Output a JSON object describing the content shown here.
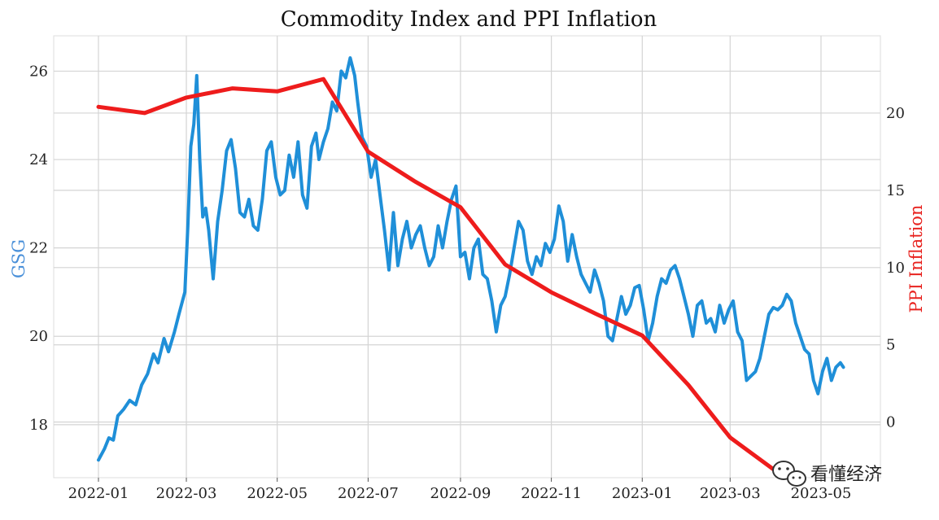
{
  "chart_data": {
    "type": "line",
    "title": "Commodity Index and PPI Inflation",
    "xlabel": "",
    "x_tick_labels": [
      "2022-01",
      "2022-03",
      "2022-05",
      "2022-07",
      "2022-09",
      "2022-11",
      "2023-01",
      "2023-03",
      "2023-05"
    ],
    "left_axis": {
      "label": "GSG",
      "label_color": "#4a90d9",
      "ylim": [
        16.8,
        26.8
      ],
      "ticks": [
        "18",
        "20",
        "22",
        "24",
        "26"
      ]
    },
    "right_axis": {
      "label": "PPI Inflation",
      "label_color": "#e8231f",
      "ylim": [
        -3.6,
        25.0
      ],
      "ticks": [
        "0",
        "5",
        "10",
        "15",
        "20"
      ]
    },
    "grid": true,
    "series": [
      {
        "name": "GSG",
        "axis": "left",
        "color": "#1f8fd8",
        "points": [
          [
            "2022-01-01",
            17.2
          ],
          [
            "2022-01-05",
            17.45
          ],
          [
            "2022-01-08",
            17.7
          ],
          [
            "2022-01-11",
            17.65
          ],
          [
            "2022-01-14",
            18.2
          ],
          [
            "2022-01-18",
            18.35
          ],
          [
            "2022-01-22",
            18.55
          ],
          [
            "2022-01-26",
            18.45
          ],
          [
            "2022-01-30",
            18.9
          ],
          [
            "2022-02-03",
            19.15
          ],
          [
            "2022-02-07",
            19.6
          ],
          [
            "2022-02-10",
            19.4
          ],
          [
            "2022-02-14",
            19.95
          ],
          [
            "2022-02-17",
            19.65
          ],
          [
            "2022-02-21",
            20.1
          ],
          [
            "2022-02-24",
            20.5
          ],
          [
            "2022-02-28",
            21.0
          ],
          [
            "2022-03-02",
            22.5
          ],
          [
            "2022-03-04",
            24.3
          ],
          [
            "2022-03-06",
            24.8
          ],
          [
            "2022-03-08",
            25.9
          ],
          [
            "2022-03-10",
            24.0
          ],
          [
            "2022-03-12",
            22.7
          ],
          [
            "2022-03-14",
            22.9
          ],
          [
            "2022-03-16",
            22.4
          ],
          [
            "2022-03-19",
            21.3
          ],
          [
            "2022-03-22",
            22.6
          ],
          [
            "2022-03-25",
            23.3
          ],
          [
            "2022-03-28",
            24.2
          ],
          [
            "2022-03-31",
            24.45
          ],
          [
            "2022-04-03",
            23.8
          ],
          [
            "2022-04-06",
            22.8
          ],
          [
            "2022-04-09",
            22.7
          ],
          [
            "2022-04-12",
            23.1
          ],
          [
            "2022-04-15",
            22.5
          ],
          [
            "2022-04-18",
            22.4
          ],
          [
            "2022-04-21",
            23.1
          ],
          [
            "2022-04-24",
            24.2
          ],
          [
            "2022-04-27",
            24.4
          ],
          [
            "2022-04-30",
            23.6
          ],
          [
            "2022-05-03",
            23.2
          ],
          [
            "2022-05-06",
            23.3
          ],
          [
            "2022-05-09",
            24.1
          ],
          [
            "2022-05-12",
            23.6
          ],
          [
            "2022-05-15",
            24.4
          ],
          [
            "2022-05-18",
            23.2
          ],
          [
            "2022-05-21",
            22.9
          ],
          [
            "2022-05-24",
            24.3
          ],
          [
            "2022-05-27",
            24.6
          ],
          [
            "2022-05-29",
            24.0
          ],
          [
            "2022-06-01",
            24.4
          ],
          [
            "2022-06-04",
            24.7
          ],
          [
            "2022-06-07",
            25.3
          ],
          [
            "2022-06-10",
            25.1
          ],
          [
            "2022-06-13",
            26.0
          ],
          [
            "2022-06-16",
            25.85
          ],
          [
            "2022-06-19",
            26.3
          ],
          [
            "2022-06-22",
            25.9
          ],
          [
            "2022-06-24",
            25.3
          ],
          [
            "2022-06-27",
            24.5
          ],
          [
            "2022-06-30",
            24.3
          ],
          [
            "2022-07-03",
            23.6
          ],
          [
            "2022-07-06",
            24.0
          ],
          [
            "2022-07-09",
            23.2
          ],
          [
            "2022-07-12",
            22.4
          ],
          [
            "2022-07-15",
            21.5
          ],
          [
            "2022-07-18",
            22.8
          ],
          [
            "2022-07-21",
            21.6
          ],
          [
            "2022-07-24",
            22.2
          ],
          [
            "2022-07-27",
            22.6
          ],
          [
            "2022-07-30",
            22.0
          ],
          [
            "2022-08-02",
            22.3
          ],
          [
            "2022-08-05",
            22.5
          ],
          [
            "2022-08-08",
            22.0
          ],
          [
            "2022-08-11",
            21.6
          ],
          [
            "2022-08-14",
            21.8
          ],
          [
            "2022-08-17",
            22.5
          ],
          [
            "2022-08-20",
            22.0
          ],
          [
            "2022-08-23",
            22.6
          ],
          [
            "2022-08-26",
            23.1
          ],
          [
            "2022-08-29",
            23.4
          ],
          [
            "2022-09-01",
            21.8
          ],
          [
            "2022-09-04",
            21.9
          ],
          [
            "2022-09-07",
            21.3
          ],
          [
            "2022-09-10",
            22.0
          ],
          [
            "2022-09-13",
            22.2
          ],
          [
            "2022-09-16",
            21.4
          ],
          [
            "2022-09-19",
            21.3
          ],
          [
            "2022-09-22",
            20.8
          ],
          [
            "2022-09-25",
            20.1
          ],
          [
            "2022-09-28",
            20.7
          ],
          [
            "2022-10-01",
            20.9
          ],
          [
            "2022-10-04",
            21.4
          ],
          [
            "2022-10-07",
            22.0
          ],
          [
            "2022-10-10",
            22.6
          ],
          [
            "2022-10-13",
            22.4
          ],
          [
            "2022-10-16",
            21.7
          ],
          [
            "2022-10-19",
            21.4
          ],
          [
            "2022-10-22",
            21.8
          ],
          [
            "2022-10-25",
            21.6
          ],
          [
            "2022-10-28",
            22.1
          ],
          [
            "2022-10-31",
            21.9
          ],
          [
            "2022-11-03",
            22.2
          ],
          [
            "2022-11-06",
            22.95
          ],
          [
            "2022-11-09",
            22.6
          ],
          [
            "2022-11-12",
            21.7
          ],
          [
            "2022-11-15",
            22.3
          ],
          [
            "2022-11-18",
            21.8
          ],
          [
            "2022-11-21",
            21.4
          ],
          [
            "2022-11-24",
            21.2
          ],
          [
            "2022-11-27",
            21.0
          ],
          [
            "2022-11-30",
            21.5
          ],
          [
            "2022-12-03",
            21.2
          ],
          [
            "2022-12-06",
            20.8
          ],
          [
            "2022-12-09",
            20.0
          ],
          [
            "2022-12-12",
            19.9
          ],
          [
            "2022-12-15",
            20.4
          ],
          [
            "2022-12-18",
            20.9
          ],
          [
            "2022-12-21",
            20.5
          ],
          [
            "2022-12-24",
            20.7
          ],
          [
            "2022-12-27",
            21.1
          ],
          [
            "2022-12-30",
            21.15
          ],
          [
            "2023-01-02",
            20.6
          ],
          [
            "2023-01-05",
            19.9
          ],
          [
            "2023-01-08",
            20.3
          ],
          [
            "2023-01-11",
            20.9
          ],
          [
            "2023-01-14",
            21.3
          ],
          [
            "2023-01-17",
            21.2
          ],
          [
            "2023-01-20",
            21.5
          ],
          [
            "2023-01-23",
            21.6
          ],
          [
            "2023-01-26",
            21.3
          ],
          [
            "2023-01-29",
            20.9
          ],
          [
            "2023-02-01",
            20.5
          ],
          [
            "2023-02-04",
            20.0
          ],
          [
            "2023-02-07",
            20.7
          ],
          [
            "2023-02-10",
            20.8
          ],
          [
            "2023-02-13",
            20.3
          ],
          [
            "2023-02-16",
            20.4
          ],
          [
            "2023-02-19",
            20.1
          ],
          [
            "2023-02-22",
            20.7
          ],
          [
            "2023-02-25",
            20.3
          ],
          [
            "2023-02-28",
            20.6
          ],
          [
            "2023-03-03",
            20.8
          ],
          [
            "2023-03-06",
            20.1
          ],
          [
            "2023-03-09",
            19.9
          ],
          [
            "2023-03-12",
            19.0
          ],
          [
            "2023-03-15",
            19.1
          ],
          [
            "2023-03-18",
            19.2
          ],
          [
            "2023-03-21",
            19.5
          ],
          [
            "2023-03-24",
            20.0
          ],
          [
            "2023-03-27",
            20.5
          ],
          [
            "2023-03-30",
            20.65
          ],
          [
            "2023-04-02",
            20.6
          ],
          [
            "2023-04-05",
            20.7
          ],
          [
            "2023-04-08",
            20.95
          ],
          [
            "2023-04-11",
            20.8
          ],
          [
            "2023-04-14",
            20.3
          ],
          [
            "2023-04-17",
            20.0
          ],
          [
            "2023-04-20",
            19.7
          ],
          [
            "2023-04-23",
            19.6
          ],
          [
            "2023-04-26",
            19.0
          ],
          [
            "2023-04-29",
            18.7
          ],
          [
            "2023-05-02",
            19.2
          ],
          [
            "2023-05-05",
            19.5
          ],
          [
            "2023-05-08",
            19.0
          ],
          [
            "2023-05-11",
            19.3
          ],
          [
            "2023-05-14",
            19.4
          ],
          [
            "2023-05-16",
            19.3
          ]
        ]
      },
      {
        "name": "PPI Inflation",
        "axis": "right",
        "color": "#ee1c1c",
        "points": [
          [
            "2022-01-01",
            20.4
          ],
          [
            "2022-02-01",
            20.0
          ],
          [
            "2022-03-01",
            21.0
          ],
          [
            "2022-04-01",
            21.6
          ],
          [
            "2022-05-01",
            21.4
          ],
          [
            "2022-06-01",
            22.2
          ],
          [
            "2022-07-01",
            17.5
          ],
          [
            "2022-08-01",
            15.6
          ],
          [
            "2022-09-01",
            13.9
          ],
          [
            "2022-10-01",
            10.2
          ],
          [
            "2022-11-01",
            8.4
          ],
          [
            "2022-12-01",
            7.0
          ],
          [
            "2023-01-01",
            5.6
          ],
          [
            "2023-02-01",
            2.4
          ],
          [
            "2023-03-01",
            -1.0
          ],
          [
            "2023-04-01",
            -3.2
          ]
        ]
      }
    ]
  },
  "watermark": {
    "icon": "wechat-icon",
    "text": "看懂经济"
  }
}
